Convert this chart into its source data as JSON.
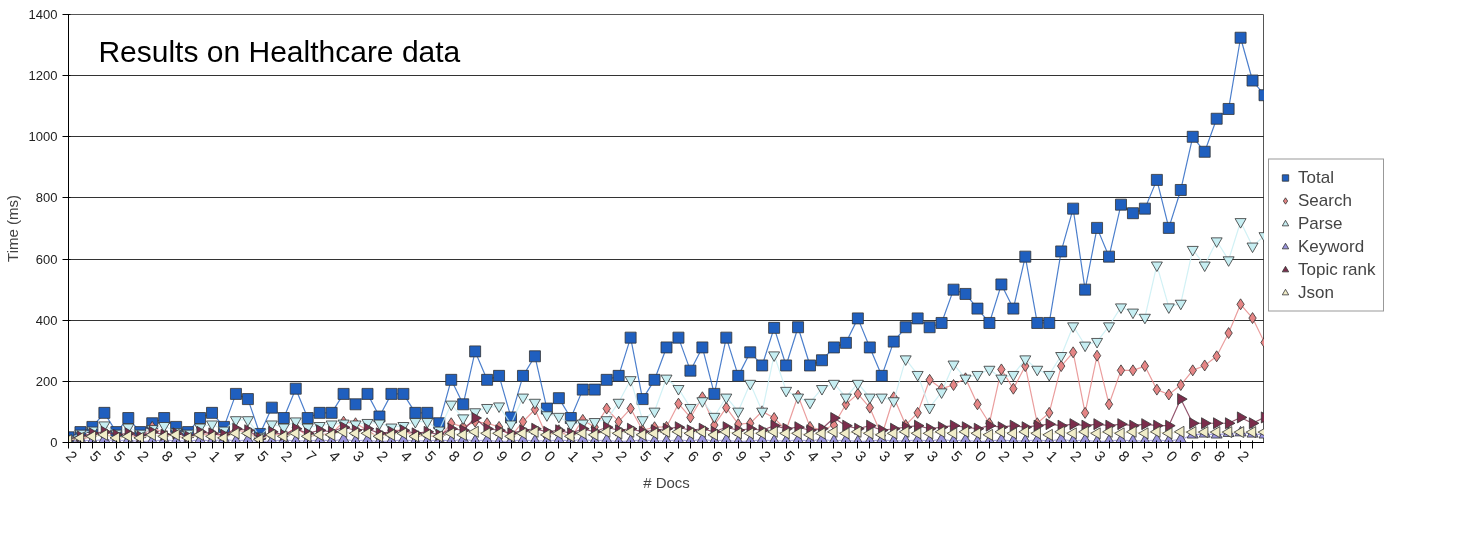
{
  "chart_data": {
    "type": "line",
    "title": "Results on Healthcare data",
    "xlabel": "# Docs",
    "ylabel": "Time (ms)",
    "categories": [
      "2",
      null,
      "5",
      null,
      "5",
      null,
      "2",
      null,
      "8",
      null,
      "2",
      null,
      "1",
      null,
      "4",
      null,
      "5",
      null,
      "2",
      null,
      "7",
      null,
      "4",
      null,
      "3",
      null,
      "2",
      null,
      "4",
      null,
      "5",
      null,
      "8",
      null,
      "0",
      null,
      "9",
      null,
      "0",
      null,
      "0",
      null,
      "1",
      null,
      "2",
      null,
      "2",
      null,
      "5",
      null,
      "1",
      null,
      "6",
      null,
      "6",
      null,
      "9",
      null,
      "2",
      null,
      "5",
      null,
      "4",
      null,
      "2",
      null,
      "3",
      null,
      "3",
      null,
      "4",
      null,
      "3",
      null,
      "5",
      null,
      "0",
      null,
      "2",
      null,
      "2",
      null,
      "1",
      null,
      "2",
      null,
      "3",
      null,
      "8",
      null,
      "2",
      null,
      "0",
      null,
      "6",
      null,
      "8",
      null,
      "2",
      null,
      null
    ],
    "ylim": [
      0,
      1400
    ],
    "yticks": [
      0,
      200,
      400,
      600,
      800,
      1000,
      1200,
      1400
    ],
    "grid": "y",
    "legend": "right",
    "series": [
      {
        "name": "Total",
        "color": "#1f5fbf",
        "marker": "square",
        "values": [
          17,
          34,
          51,
          97,
          34,
          80,
          34,
          63,
          80,
          51,
          34,
          80,
          97,
          51,
          159,
          142,
          28,
          114,
          80,
          176,
          80,
          97,
          97,
          159,
          125,
          159,
          85,
          159,
          159,
          97,
          97,
          63,
          205,
          125,
          298,
          205,
          218,
          82,
          218,
          282,
          111,
          145,
          80,
          173,
          173,
          205,
          218,
          343,
          142,
          205,
          311,
          343,
          235,
          311,
          159,
          343,
          218,
          295,
          252,
          375,
          252,
          377,
          252,
          269,
          311,
          326,
          406,
          311,
          218,
          330,
          377,
          406,
          377,
          391,
          500,
          486,
          438,
          391,
          517,
          438,
          608,
          391,
          391,
          625,
          765,
          500,
          702,
          608,
          778,
          750,
          765,
          859,
          702,
          826,
          1000,
          951,
          1059,
          1091,
          1324,
          1184,
          1136
        ]
      },
      {
        "name": "Search",
        "color": "#e58585",
        "marker": "diamond",
        "values": [
          5,
          10,
          20,
          30,
          10,
          25,
          15,
          51,
          30,
          20,
          15,
          25,
          30,
          20,
          40,
          35,
          5,
          30,
          20,
          50,
          20,
          25,
          30,
          68,
          63,
          40,
          15,
          40,
          40,
          20,
          25,
          15,
          63,
          51,
          68,
          63,
          51,
          20,
          68,
          108,
          20,
          40,
          15,
          74,
          50,
          111,
          68,
          111,
          40,
          50,
          51,
          127,
          82,
          148,
          57,
          114,
          60,
          63,
          102,
          80,
          40,
          153,
          51,
          40,
          57,
          125,
          159,
          114,
          23,
          148,
          57,
          97,
          205,
          176,
          188,
          210,
          125,
          63,
          239,
          176,
          250,
          63,
          97,
          250,
          295,
          97,
          284,
          125,
          236,
          236,
          250,
          173,
          157,
          188,
          236,
          252,
          282,
          358,
          452,
          407,
          327
        ]
      },
      {
        "name": "Parse",
        "color": "#c6eef2",
        "marker": "triangle",
        "values": [
          10,
          30,
          40,
          57,
          30,
          50,
          30,
          45,
          55,
          35,
          30,
          50,
          60,
          40,
          74,
          74,
          20,
          60,
          50,
          70,
          50,
          55,
          60,
          63,
          60,
          65,
          63,
          50,
          55,
          68,
          68,
          40,
          125,
          80,
          100,
          114,
          119,
          60,
          148,
          131,
          90,
          85,
          60,
          63,
          68,
          74,
          131,
          205,
          74,
          102,
          210,
          176,
          114,
          136,
          85,
          148,
          102,
          193,
          102,
          286,
          170,
          148,
          131,
          176,
          193,
          148,
          193,
          148,
          148,
          136,
          273,
          222,
          114,
          165,
          256,
          210,
          222,
          239,
          210,
          222,
          273,
          239,
          222,
          284,
          381,
          318,
          330,
          381,
          443,
          426,
          409,
          580,
          443,
          455,
          631,
          580,
          659,
          597,
          722,
          642,
          676
        ]
      },
      {
        "name": "Keyword",
        "color": "#9a94de",
        "marker": "triangle",
        "values": [
          5,
          8,
          5,
          10,
          5,
          8,
          3,
          5,
          8,
          5,
          5,
          8,
          5,
          10,
          5,
          8,
          3,
          5,
          8,
          5,
          5,
          8,
          5,
          10,
          5,
          8,
          3,
          5,
          8,
          5,
          5,
          8,
          5,
          10,
          5,
          8,
          3,
          5,
          8,
          5,
          5,
          8,
          5,
          10,
          5,
          8,
          3,
          5,
          8,
          5,
          5,
          8,
          5,
          10,
          5,
          8,
          3,
          5,
          8,
          5,
          5,
          8,
          5,
          10,
          5,
          8,
          3,
          5,
          8,
          5,
          5,
          8,
          5,
          10,
          5,
          8,
          3,
          5,
          8,
          5,
          5,
          8,
          5,
          10,
          5,
          8,
          3,
          5,
          8,
          5,
          5,
          8,
          5,
          10,
          25,
          28,
          25,
          30,
          32,
          28,
          25
        ]
      },
      {
        "name": "Topic rank",
        "color": "#7b2d4c",
        "marker": "triangle",
        "values": [
          10,
          20,
          30,
          35,
          25,
          30,
          20,
          35,
          25,
          30,
          20,
          35,
          30,
          25,
          45,
          40,
          15,
          35,
          25,
          45,
          30,
          40,
          35,
          50,
          40,
          45,
          30,
          35,
          40,
          30,
          35,
          25,
          45,
          40,
          80,
          45,
          40,
          30,
          40,
          45,
          35,
          40,
          30,
          45,
          35,
          50,
          40,
          45,
          35,
          40,
          45,
          50,
          40,
          45,
          35,
          50,
          40,
          45,
          40,
          55,
          45,
          50,
          40,
          45,
          80,
          55,
          45,
          55,
          40,
          45,
          50,
          55,
          45,
          50,
          55,
          50,
          45,
          55,
          50,
          55,
          50,
          55,
          60,
          55,
          60,
          55,
          60,
          55,
          60,
          55,
          60,
          55,
          55,
          142,
          63,
          63,
          63,
          63,
          82,
          63,
          82
        ]
      },
      {
        "name": "Json",
        "color": "#f1edc9",
        "marker": "triangle",
        "values": [
          8,
          15,
          20,
          25,
          15,
          20,
          15,
          25,
          20,
          25,
          15,
          25,
          20,
          15,
          30,
          30,
          10,
          25,
          20,
          30,
          20,
          25,
          25,
          35,
          30,
          30,
          20,
          25,
          30,
          20,
          25,
          20,
          30,
          25,
          35,
          30,
          30,
          20,
          30,
          35,
          25,
          30,
          20,
          30,
          25,
          35,
          30,
          35,
          25,
          30,
          35,
          35,
          30,
          35,
          25,
          35,
          30,
          30,
          30,
          35,
          30,
          30,
          25,
          30,
          35,
          30,
          35,
          30,
          25,
          30,
          35,
          30,
          30,
          35,
          30,
          35,
          30,
          25,
          35,
          30,
          35,
          30,
          25,
          35,
          30,
          35,
          30,
          35,
          30,
          35,
          30,
          35,
          30,
          35,
          34,
          34,
          34,
          34,
          34,
          34,
          34
        ]
      }
    ]
  }
}
